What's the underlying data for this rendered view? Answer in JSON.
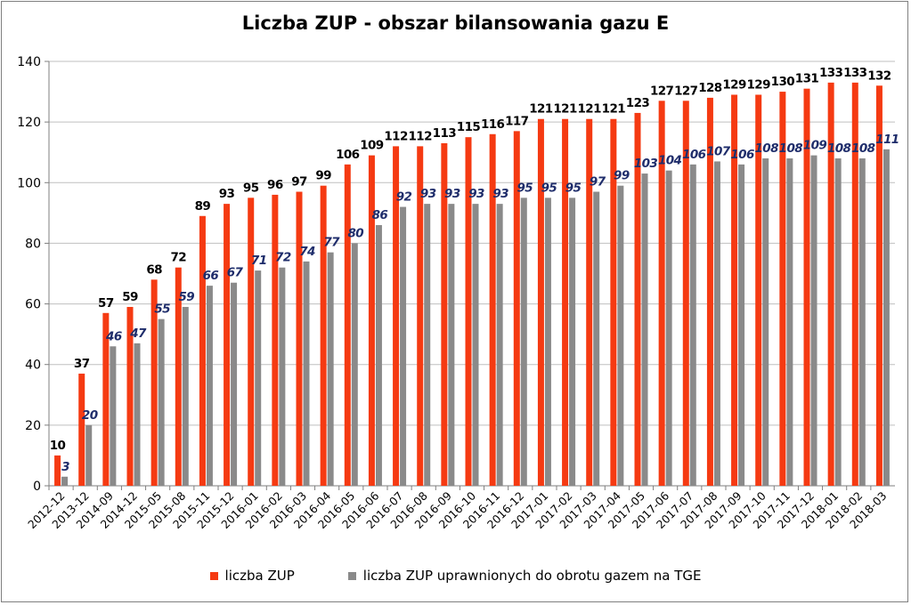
{
  "colors": {
    "series1": "#f53a12",
    "series2": "#8a8a8a",
    "label1": "#000000",
    "label2": "#1f2d6b",
    "grid": "#bfbfbf"
  },
  "chart_data": {
    "type": "bar",
    "title": "Liczba ZUP - obszar bilansowania gazu E",
    "xlabel": "",
    "ylabel": "",
    "ylim": [
      0,
      140
    ],
    "yticks": [
      0,
      20,
      40,
      60,
      80,
      100,
      120,
      140
    ],
    "grid": true,
    "legend_position": "bottom",
    "categories": [
      "2012-12",
      "2013-12",
      "2014-09",
      "2014-12",
      "2015-05",
      "2015-08",
      "2015-11",
      "2015-12",
      "2016-01",
      "2016-02",
      "2016-03",
      "2016-04",
      "2016-05",
      "2016-06",
      "2016-07",
      "2016-08",
      "2016-09",
      "2016-10",
      "2016-11",
      "2016-12",
      "2017-01",
      "2017-02",
      "2017-03",
      "2017-04",
      "2017-05",
      "2017-06",
      "2017-07",
      "2017-08",
      "2017-09",
      "2017-10",
      "2017-11",
      "2017-12",
      "2018-01",
      "2018-02",
      "2018-03"
    ],
    "series": [
      {
        "name": "liczba ZUP",
        "values": [
          10,
          37,
          57,
          59,
          68,
          72,
          89,
          93,
          95,
          96,
          97,
          99,
          106,
          109,
          112,
          112,
          113,
          115,
          116,
          117,
          121,
          121,
          121,
          121,
          123,
          127,
          127,
          128,
          129,
          129,
          130,
          131,
          133,
          133,
          132
        ]
      },
      {
        "name": "liczba ZUP uprawnionych do obrotu gazem na TGE",
        "values": [
          3,
          20,
          46,
          47,
          55,
          59,
          66,
          67,
          71,
          72,
          74,
          77,
          80,
          86,
          92,
          93,
          93,
          93,
          93,
          95,
          95,
          95,
          97,
          99,
          103,
          104,
          106,
          107,
          106,
          108,
          108,
          109,
          108,
          108,
          111
        ]
      }
    ]
  }
}
